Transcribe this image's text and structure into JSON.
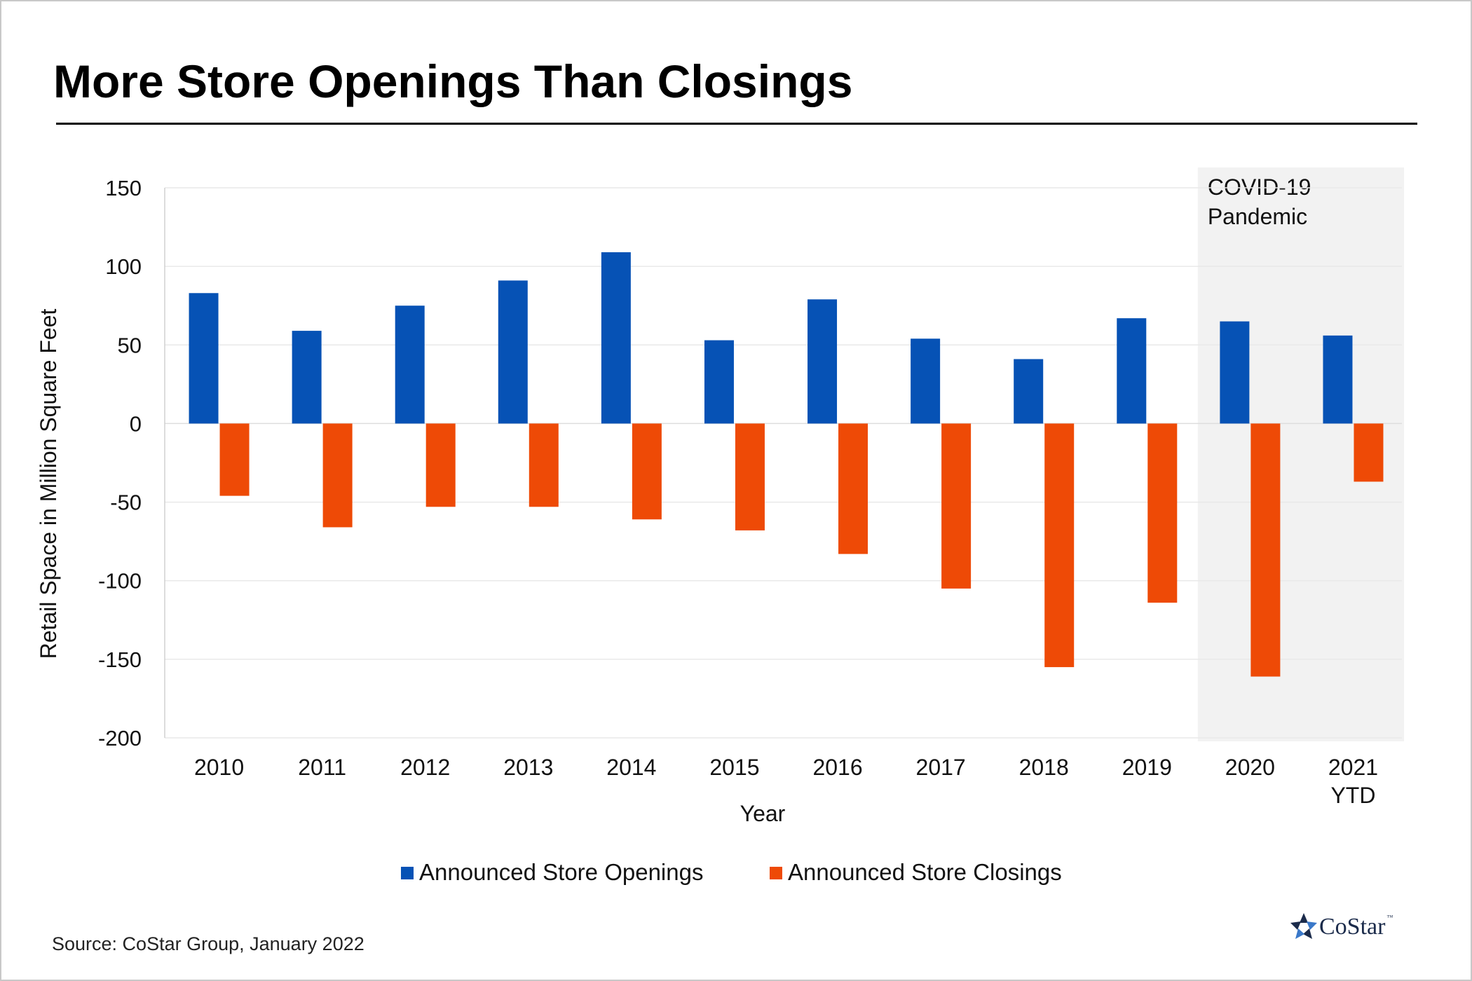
{
  "title": "More Store Openings Than Closings",
  "source": "Source: CoStar Group, January 2022",
  "logo": {
    "text": "CoStar",
    "tm": "™",
    "icon": "costar-star-icon"
  },
  "colors": {
    "openings": "#0652b5",
    "closings": "#ee4a06",
    "shade": "#f2f2f2",
    "grid": "#e9e9e9"
  },
  "chart_data": {
    "type": "bar",
    "title": "More Store Openings Than Closings",
    "xlabel": "Year",
    "ylabel": "Retail Space in Million Square Feet",
    "ylim": [
      -200,
      150
    ],
    "yticks": [
      150,
      100,
      50,
      0,
      -50,
      -100,
      -150,
      -200
    ],
    "categories": [
      [
        "2010"
      ],
      [
        "2011"
      ],
      [
        "2012"
      ],
      [
        "2013"
      ],
      [
        "2014"
      ],
      [
        "2015"
      ],
      [
        "2016"
      ],
      [
        "2017"
      ],
      [
        "2018"
      ],
      [
        "2019"
      ],
      [
        "2020"
      ],
      [
        "2021",
        "YTD"
      ]
    ],
    "series": [
      {
        "name": "Announced Store Openings",
        "color": "#0652b5",
        "values": [
          83,
          59,
          75,
          91,
          109,
          53,
          79,
          54,
          41,
          67,
          65,
          56
        ]
      },
      {
        "name": "Announced Store Closings",
        "color": "#ee4a06",
        "values": [
          -46,
          -66,
          -53,
          -53,
          -61,
          -68,
          -83,
          -105,
          -155,
          -114,
          -161,
          -37
        ]
      }
    ],
    "annotation": {
      "lines": [
        "COVID-19",
        "Pandemic"
      ],
      "shaded_categories": [
        "2020",
        "2021 YTD"
      ]
    },
    "grid": true,
    "legend": "bottom-center"
  }
}
